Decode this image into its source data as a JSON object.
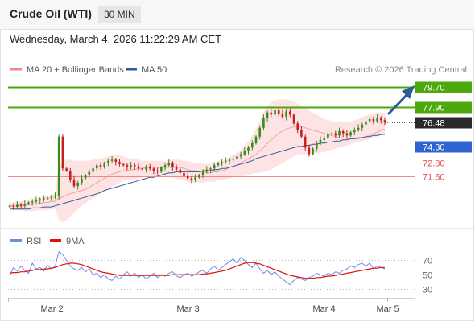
{
  "header": {
    "instrument": "Crude Oil (WTI)",
    "interval": "30 MIN"
  },
  "datetime": "Wednesday, March 4, 2026 11:22:29 AM CET",
  "credit": "Research © 2026 Trading Central",
  "colors": {
    "resistance": "#4ca80b",
    "pivot": "#2f63d1",
    "support": "#f08a8a",
    "bollinger_fill": "#fde3e3",
    "ma20": "#f4a0a0",
    "ma50": "#2e5a9c",
    "candle_up": "#3a8a1c",
    "candle_down": "#c62020",
    "rsi": "#6b8fdc",
    "rsi_ma": "#e01010",
    "last_price_bg": "#2a2a2a",
    "arrow": "#2e5a9c"
  },
  "chart_data": [
    {
      "type": "candlestick",
      "legend": [
        {
          "label": "MA 20 + Bollinger Bands",
          "color": "#f08a8a"
        },
        {
          "label": "MA 50",
          "color": "#2e5a9c"
        }
      ],
      "x_tick_labels": [
        "Mar 2",
        "Mar 3",
        "Mar 4",
        "Mar 5"
      ],
      "ylim": [
        68.0,
        80.6
      ],
      "last_price": 76.48,
      "levels": [
        {
          "label": "79.70",
          "value": 79.7,
          "kind": "resistance"
        },
        {
          "label": "77.90",
          "value": 77.9,
          "kind": "resistance"
        },
        {
          "label": "74.30",
          "value": 74.3,
          "kind": "pivot"
        },
        {
          "label": "72.80",
          "value": 72.8,
          "kind": "support"
        },
        {
          "label": "71.60",
          "value": 71.6,
          "kind": "support"
        }
      ],
      "closes": [
        68.9,
        68.8,
        69.0,
        68.9,
        69.1,
        69.2,
        69.3,
        69.4,
        69.5,
        69.6,
        69.6,
        69.7,
        69.8,
        75.2,
        72.3,
        72.1,
        71.3,
        70.7,
        71.0,
        71.4,
        71.7,
        72.0,
        72.3,
        72.6,
        72.4,
        72.8,
        73.0,
        73.1,
        72.9,
        72.7,
        72.6,
        72.4,
        72.6,
        72.5,
        72.3,
        72.2,
        72.4,
        72.3,
        72.1,
        72.0,
        72.4,
        72.6,
        72.8,
        72.4,
        72.2,
        71.9,
        71.6,
        71.4,
        71.3,
        71.5,
        71.7,
        72.0,
        72.2,
        72.3,
        72.6,
        72.8,
        72.9,
        73.0,
        73.1,
        73.2,
        73.4,
        73.6,
        73.9,
        74.2,
        74.6,
        75.2,
        76.0,
        76.9,
        77.4,
        77.2,
        77.6,
        77.3,
        77.0,
        77.5,
        77.2,
        76.4,
        75.8,
        75.2,
        74.2,
        73.6,
        74.1,
        74.6,
        74.9,
        75.1,
        75.4,
        75.5,
        75.3,
        75.7,
        75.5,
        75.3,
        75.6,
        75.8,
        76.0,
        76.3,
        76.6,
        76.8,
        76.6,
        76.9,
        76.7,
        76.48
      ],
      "ma20": [
        68.9,
        68.9,
        68.9,
        68.9,
        68.9,
        69.0,
        69.0,
        69.1,
        69.1,
        69.2,
        69.2,
        69.3,
        69.3,
        69.6,
        69.7,
        69.9,
        70.0,
        70.1,
        70.2,
        70.3,
        70.4,
        70.6,
        70.8,
        71.0,
        71.2,
        71.4,
        71.6,
        71.8,
        71.9,
        72.0,
        72.1,
        72.1,
        72.2,
        72.2,
        72.3,
        72.3,
        72.4,
        72.4,
        72.4,
        72.4,
        72.4,
        72.4,
        72.4,
        72.4,
        72.4,
        72.4,
        72.3,
        72.2,
        72.1,
        72.1,
        72.0,
        72.0,
        71.9,
        71.9,
        72.0,
        72.0,
        72.1,
        72.2,
        72.4,
        72.5,
        72.6,
        72.8,
        73.0,
        73.2,
        73.4,
        73.6,
        73.9,
        74.2,
        74.6,
        74.9,
        75.2,
        75.5,
        75.7,
        75.9,
        76.0,
        76.1,
        76.1,
        76.1,
        76.0,
        75.9,
        75.8,
        75.7,
        75.6,
        75.5,
        75.4,
        75.3,
        75.2,
        75.1,
        75.1,
        75.0,
        75.0,
        75.0,
        75.0,
        75.1,
        75.2,
        75.3,
        75.5,
        75.6,
        75.8,
        75.9
      ],
      "ma50": [
        68.6,
        68.6,
        68.6,
        68.6,
        68.6,
        68.6,
        68.7,
        68.7,
        68.7,
        68.8,
        68.8,
        68.8,
        68.9,
        69.0,
        69.1,
        69.2,
        69.3,
        69.4,
        69.5,
        69.6,
        69.7,
        69.8,
        69.9,
        70.0,
        70.1,
        70.3,
        70.4,
        70.5,
        70.6,
        70.7,
        70.8,
        70.9,
        71.0,
        71.1,
        71.2,
        71.3,
        71.4,
        71.5,
        71.5,
        71.6,
        71.7,
        71.8,
        71.9,
        71.9,
        72.0,
        72.0,
        72.0,
        72.0,
        72.0,
        72.0,
        72.0,
        72.1,
        72.1,
        72.1,
        72.2,
        72.2,
        72.3,
        72.3,
        72.4,
        72.5,
        72.6,
        72.7,
        72.8,
        72.9,
        73.0,
        73.2,
        73.3,
        73.4,
        73.5,
        73.6,
        73.7,
        73.8,
        73.9,
        74.0,
        74.1,
        74.2,
        74.3,
        74.3,
        74.4,
        74.4,
        74.5,
        74.5,
        74.6,
        74.6,
        74.7,
        74.7,
        74.8,
        74.8,
        74.9,
        74.9,
        75.0,
        75.0,
        75.1,
        75.1,
        75.2,
        75.2,
        75.3,
        75.3,
        75.4,
        75.4
      ],
      "bollinger_upper": [
        69.2,
        69.2,
        69.3,
        69.3,
        69.4,
        69.4,
        69.5,
        69.6,
        69.6,
        69.7,
        69.8,
        69.9,
        70.0,
        72.5,
        73.0,
        73.1,
        73.1,
        73.0,
        73.0,
        73.0,
        73.0,
        73.0,
        73.1,
        73.2,
        73.2,
        73.3,
        73.4,
        73.5,
        73.5,
        73.5,
        73.4,
        73.3,
        73.2,
        73.2,
        73.1,
        73.0,
        73.0,
        73.0,
        73.0,
        73.0,
        73.0,
        73.0,
        73.1,
        73.1,
        73.1,
        73.1,
        73.0,
        73.0,
        72.9,
        72.8,
        72.8,
        72.7,
        72.7,
        72.7,
        72.8,
        72.9,
        73.0,
        73.1,
        73.3,
        73.5,
        73.7,
        74.0,
        74.4,
        74.8,
        75.3,
        75.9,
        76.6,
        77.4,
        78.0,
        78.3,
        78.5,
        78.6,
        78.6,
        78.6,
        78.5,
        78.4,
        78.2,
        78.0,
        77.8,
        77.6,
        77.4,
        77.2,
        77.0,
        76.8,
        76.7,
        76.6,
        76.5,
        76.5,
        76.5,
        76.5,
        76.6,
        76.7,
        76.8,
        77.0,
        77.1,
        77.2,
        77.3,
        77.4,
        77.4,
        77.4
      ],
      "bollinger_lower": [
        68.6,
        68.6,
        68.5,
        68.5,
        68.4,
        68.4,
        68.4,
        68.5,
        68.5,
        68.5,
        68.5,
        68.6,
        68.6,
        67.6,
        67.4,
        67.6,
        67.9,
        68.3,
        68.6,
        68.9,
        69.1,
        69.4,
        69.6,
        69.8,
        70.0,
        70.2,
        70.4,
        70.6,
        70.8,
        71.0,
        71.2,
        71.2,
        71.3,
        71.3,
        71.4,
        71.5,
        71.6,
        71.6,
        71.6,
        71.6,
        71.6,
        71.6,
        71.5,
        71.5,
        71.4,
        71.3,
        71.2,
        71.1,
        71.0,
        71.0,
        71.0,
        71.0,
        71.1,
        71.1,
        71.1,
        71.2,
        71.3,
        71.3,
        71.4,
        71.5,
        71.6,
        71.6,
        71.6,
        71.7,
        71.8,
        71.9,
        71.9,
        72.0,
        72.1,
        72.2,
        72.4,
        72.6,
        72.8,
        73.0,
        73.2,
        73.4,
        73.5,
        73.6,
        73.6,
        73.6,
        73.7,
        73.7,
        73.8,
        73.8,
        73.9,
        74.0,
        74.1,
        74.2,
        74.3,
        74.4,
        74.5,
        74.6,
        74.7,
        74.8,
        74.9,
        75.0,
        75.1,
        75.2,
        75.3,
        75.4
      ]
    },
    {
      "type": "line",
      "legend": [
        {
          "label": "RSI",
          "color": "#6b8fdc"
        },
        {
          "label": "9MA",
          "color": "#e01010"
        }
      ],
      "ylim": [
        20,
        85
      ],
      "y_tick_labels": [
        "70",
        "50",
        "30"
      ],
      "y_ticks": [
        70,
        50,
        30
      ],
      "series": [
        {
          "name": "RSI",
          "values": [
            48,
            60,
            55,
            62,
            56,
            52,
            66,
            58,
            60,
            55,
            63,
            58,
            62,
            82,
            78,
            70,
            62,
            58,
            56,
            60,
            54,
            58,
            50,
            52,
            46,
            50,
            44,
            42,
            48,
            44,
            50,
            54,
            48,
            52,
            46,
            50,
            44,
            48,
            52,
            46,
            50,
            48,
            52,
            54,
            48,
            46,
            50,
            52,
            48,
            50,
            54,
            56,
            52,
            58,
            62,
            56,
            60,
            64,
            68,
            72,
            66,
            74,
            70,
            64,
            60,
            66,
            58,
            52,
            56,
            50,
            54,
            48,
            44,
            40,
            36,
            42,
            46,
            44,
            42,
            46,
            48,
            52,
            50,
            48,
            52,
            50,
            54,
            52,
            56,
            58,
            62,
            60,
            64,
            66,
            62,
            66,
            58,
            62,
            60,
            58
          ]
        },
        {
          "name": "9MA",
          "values": [
            52,
            53,
            53,
            54,
            54,
            55,
            56,
            57,
            57,
            58,
            58,
            59,
            60,
            62,
            64,
            65,
            66,
            66,
            65,
            64,
            62,
            60,
            58,
            56,
            54,
            53,
            52,
            51,
            50,
            49,
            49,
            49,
            49,
            49,
            49,
            49,
            49,
            49,
            49,
            49,
            49,
            49,
            49,
            50,
            50,
            50,
            50,
            50,
            50,
            50,
            50,
            51,
            51,
            52,
            53,
            54,
            55,
            56,
            58,
            60,
            62,
            64,
            66,
            67,
            67,
            66,
            65,
            63,
            61,
            59,
            57,
            55,
            53,
            51,
            49,
            48,
            47,
            46,
            45,
            45,
            45,
            46,
            46,
            47,
            48,
            48,
            49,
            50,
            51,
            52,
            53,
            54,
            55,
            56,
            57,
            58,
            59,
            59,
            60,
            60
          ]
        }
      ]
    }
  ]
}
